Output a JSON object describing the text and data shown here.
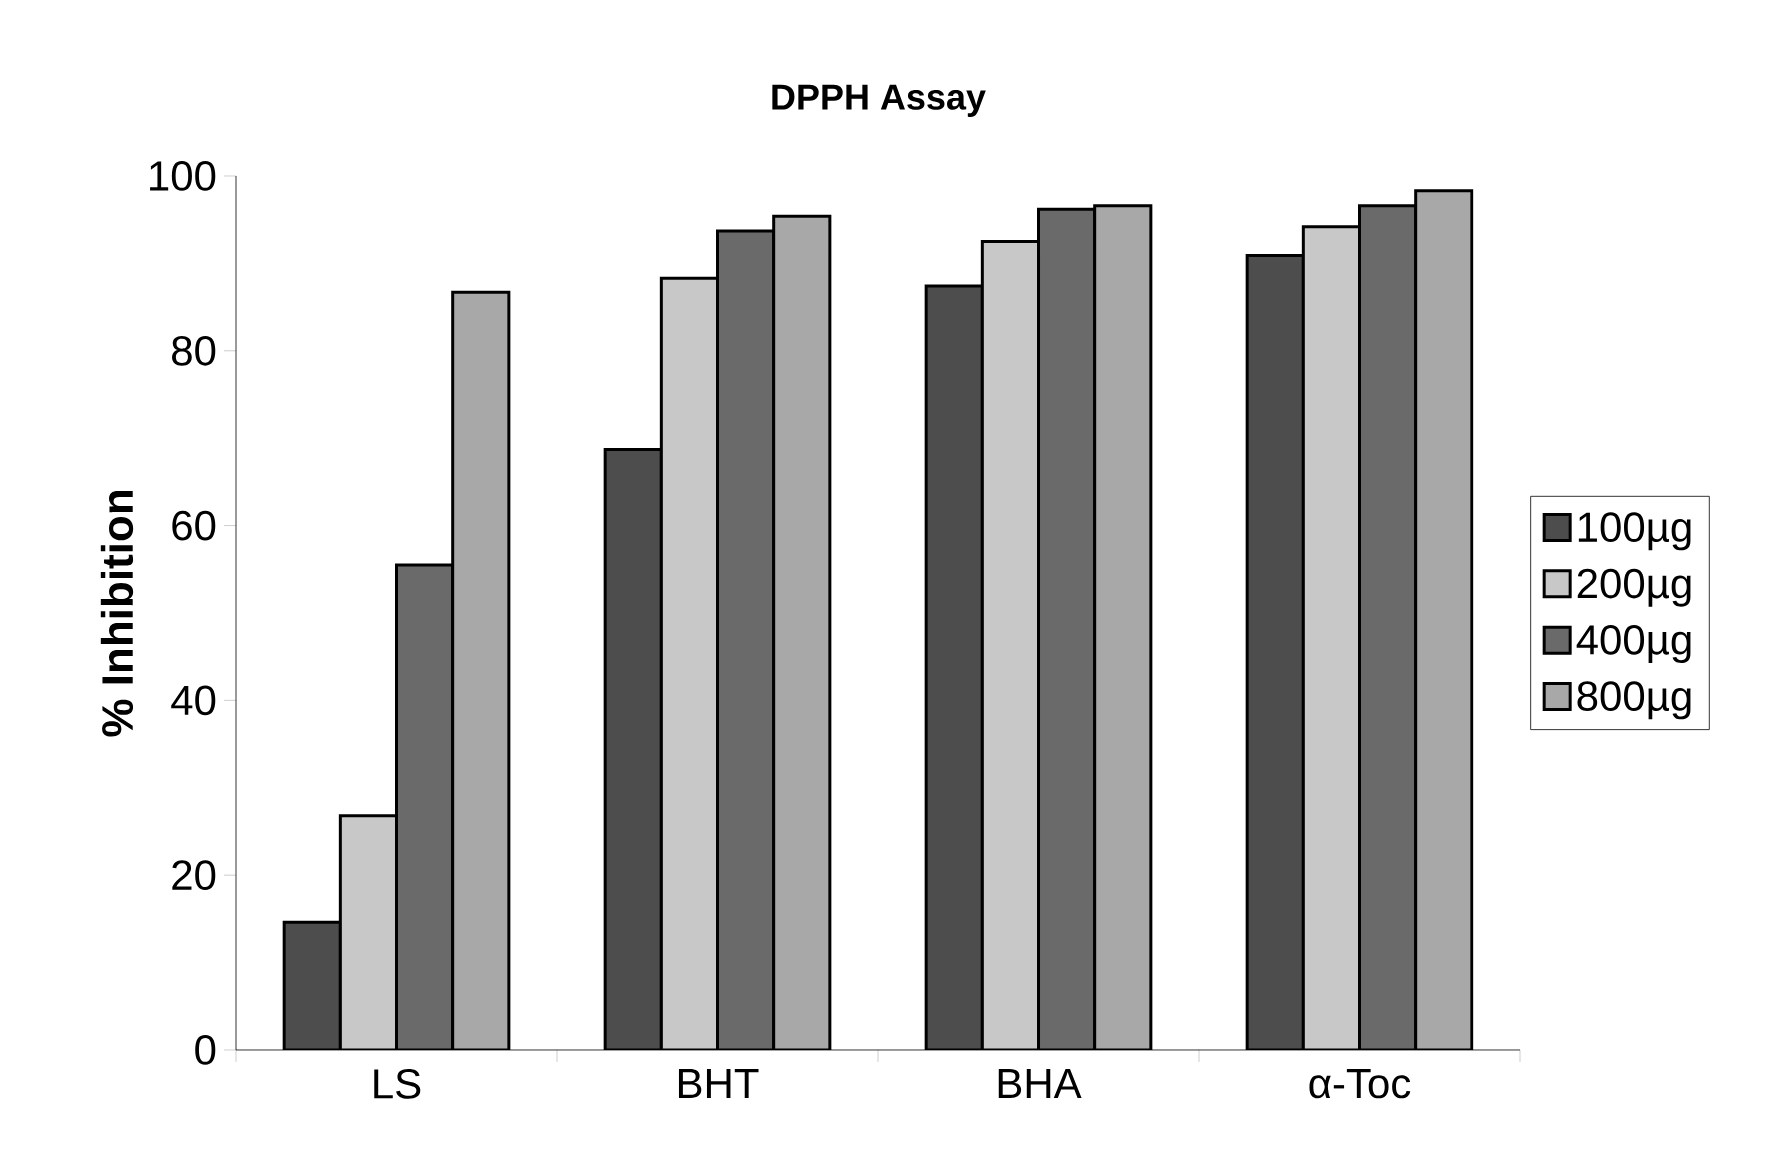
{
  "chart_data": {
    "type": "bar",
    "title": "DPPH Assay",
    "ylabel": "% Inhibition",
    "categories": [
      "LS",
      "BHT",
      "BHA",
      "α-Toc"
    ],
    "series": [
      {
        "name": "100µg",
        "color": "#4d4d4d",
        "values": [
          14.6,
          68.7,
          87.4,
          90.9
        ]
      },
      {
        "name": "200µg",
        "color": "#c8c8c8",
        "values": [
          26.8,
          88.3,
          92.5,
          94.2
        ]
      },
      {
        "name": "400µg",
        "color": "#6a6a6a",
        "values": [
          55.5,
          93.7,
          96.2,
          96.6
        ]
      },
      {
        "name": "800µg",
        "color": "#a8a8a8",
        "values": [
          86.7,
          95.4,
          96.6,
          98.3
        ]
      }
    ],
    "ylim": [
      0,
      100
    ],
    "yticks": [
      0,
      20,
      40,
      60,
      80,
      100
    ],
    "grid": false,
    "legend": "right"
  }
}
